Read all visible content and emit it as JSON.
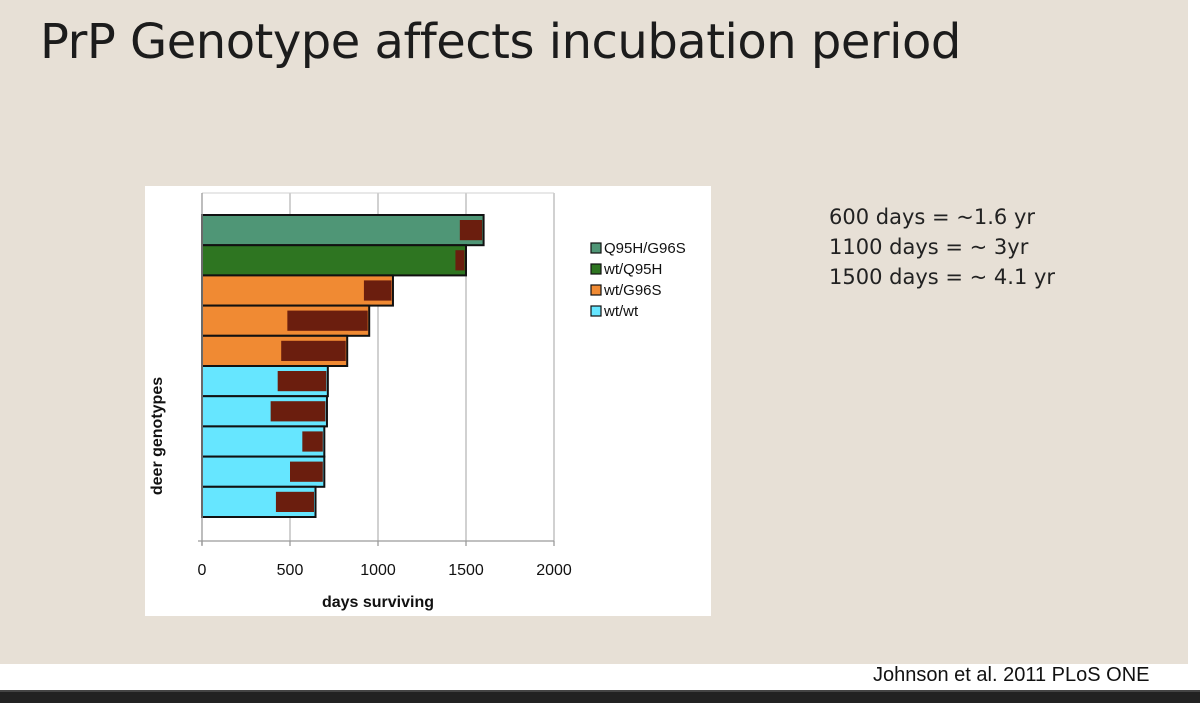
{
  "slide": {
    "title": "PrP Genotype affects incubation period",
    "notes": [
      "600 days = ~1.6 yr",
      "1100 days = ~ 3yr",
      "1500 days = ~ 4.1 yr"
    ],
    "citation": "Johnson et al. 2011 PLoS ONE"
  },
  "chart_data": {
    "type": "bar",
    "orientation": "horizontal",
    "title": "",
    "xlabel": "days surviving",
    "ylabel": "deer genotypes",
    "xlim": [
      0,
      2000
    ],
    "xticks": [
      0,
      500,
      1000,
      1500,
      2000
    ],
    "xtick_labels": [
      "0",
      "500",
      "1000",
      "1500",
      "2000"
    ],
    "grid": "vertical",
    "legend_position": "right",
    "legend": [
      {
        "name": "Q95H/G96S",
        "color": "#4f9676"
      },
      {
        "name": "wt/Q95H",
        "color": "#2e7521"
      },
      {
        "name": "wt/G96S",
        "color": "#f08a33"
      },
      {
        "name": "wt/wt",
        "color": "#66e6ff"
      }
    ],
    "inner_bar_color": "#6b1e0e",
    "bars": [
      {
        "genotype": "Q95H/G96S",
        "value": 1600,
        "inner_start": 1465
      },
      {
        "genotype": "wt/Q95H",
        "value": 1500,
        "inner_start": 1440
      },
      {
        "genotype": "wt/G96S",
        "value": 1085,
        "inner_start": 920
      },
      {
        "genotype": "wt/G96S",
        "value": 950,
        "inner_start": 485
      },
      {
        "genotype": "wt/G96S",
        "value": 825,
        "inner_start": 450
      },
      {
        "genotype": "wt/wt",
        "value": 715,
        "inner_start": 430
      },
      {
        "genotype": "wt/wt",
        "value": 710,
        "inner_start": 390
      },
      {
        "genotype": "wt/wt",
        "value": 695,
        "inner_start": 570
      },
      {
        "genotype": "wt/wt",
        "value": 695,
        "inner_start": 500
      },
      {
        "genotype": "wt/wt",
        "value": 645,
        "inner_start": 420
      }
    ]
  }
}
